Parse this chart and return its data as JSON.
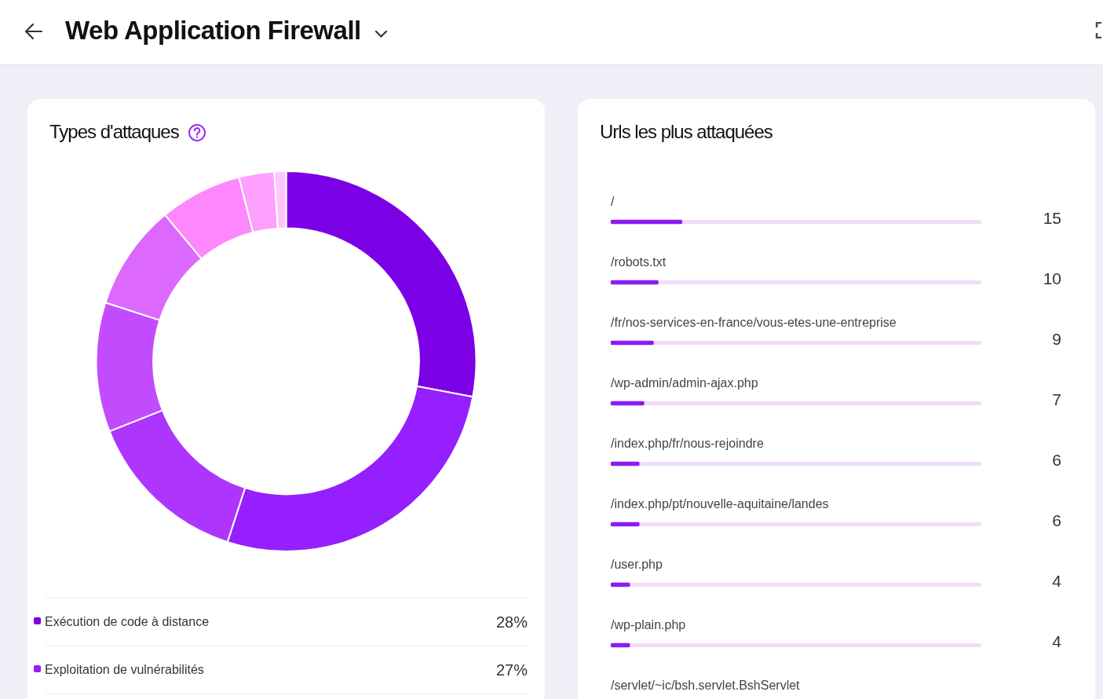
{
  "chart_data": [
    {
      "type": "other",
      "title": "Web Application Firewall"
    },
    {
      "type": "donut",
      "title": "Types d'attaques",
      "categories": [
        "Exécution de code à distance",
        "Exploitation de vulnérabilités",
        null,
        null,
        null,
        null,
        null,
        null
      ],
      "values": [
        28,
        27,
        14,
        11,
        9,
        7,
        3,
        1
      ],
      "value_labels": [
        "28%",
        "27%",
        null,
        null,
        null,
        null,
        null,
        null
      ],
      "colors": [
        "#7b00e6",
        "#951ffe",
        "#ad35fd",
        "#c24cfd",
        "#dc68fd",
        "#fd88fd",
        "#fea0fd",
        "#fec6fd"
      ],
      "legend": "bottom"
    },
    {
      "type": "bar",
      "orientation": "horizontal",
      "title": "Urls les plus attaquées",
      "categories": [
        "/",
        "/robots.txt",
        "/fr/nos-services-en-france/vous-etes-une-entreprise",
        "/wp-admin/admin-ajax.php",
        "/index.php/fr/nous-rejoindre",
        "/index.php/pt/nouvelle-aquitaine/landes",
        "/user.php",
        "/wp-plain.php",
        "/servlet/~ic/bsh.servlet.BshServlet"
      ],
      "values": [
        15,
        10,
        9,
        7,
        6,
        6,
        4,
        4,
        null
      ],
      "color": "#8b1cf4",
      "xlim": [
        0,
        78
      ],
      "data_labels": true,
      "legend": false
    }
  ]
}
